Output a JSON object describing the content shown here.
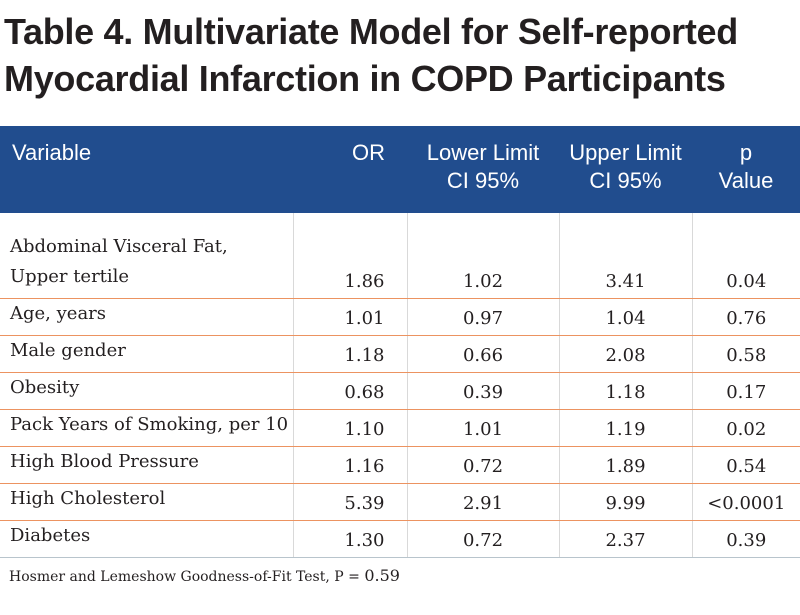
{
  "title": {
    "line1": "Table 4. Multivariate Model for Self-reported",
    "line2": "Myocardial Infarction in COPD Participants"
  },
  "header": {
    "variable": "Variable",
    "or": "OR",
    "lower_line1": "Lower Limit",
    "lower_line2": "CI 95%",
    "upper_line1": "Upper Limit",
    "upper_line2": "CI 95%",
    "p_line1": "p",
    "p_line2": "Value"
  },
  "rows": [
    {
      "variable_line1": "Abdominal Visceral Fat,",
      "variable_line2": "Upper tertile",
      "or": "1.86",
      "lower": "1.02",
      "upper": "3.41",
      "p": "0.04"
    },
    {
      "variable": "Age, years",
      "or": "1.01",
      "lower": "0.97",
      "upper": "1.04",
      "p": "0.76"
    },
    {
      "variable": "Male gender",
      "or": "1.18",
      "lower": "0.66",
      "upper": "2.08",
      "p": "0.58"
    },
    {
      "variable": "Obesity",
      "or": "0.68",
      "lower": "0.39",
      "upper": "1.18",
      "p": "0.17"
    },
    {
      "variable": "Pack Years of Smoking, per 10",
      "or": "1.10",
      "lower": "1.01",
      "upper": "1.19",
      "p": "0.02"
    },
    {
      "variable": "High Blood Pressure",
      "or": "1.16",
      "lower": "0.72",
      "upper": "1.89",
      "p": "0.54"
    },
    {
      "variable": "High Cholesterol",
      "or": "5.39",
      "lower": "2.91",
      "upper": "9.99",
      "p": "<0.0001"
    },
    {
      "variable": "Diabetes",
      "or": "1.30",
      "lower": "0.72",
      "upper": "2.37",
      "p": "0.39"
    }
  ],
  "footnote": {
    "text": "Hosmer and Lemeshow Goodness-of-Fit Test, P = ",
    "value": "0.59"
  },
  "colors": {
    "header_bg": "#214d8e",
    "row_divider": "#ec9361",
    "text": "#231f20"
  }
}
